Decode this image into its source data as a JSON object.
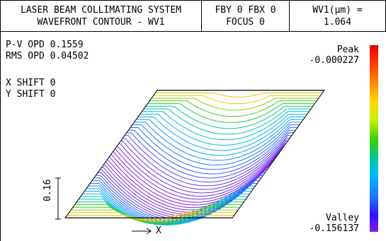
{
  "header": {
    "title_line1": "LASER BEAM COLLIMATING SYSTEM",
    "title_line2": "WAVEFRONT CONTOUR - WV1",
    "field_line1": "FBY 0  FBX 0",
    "field_line2": "FOCUS 0",
    "wave_line1": "WV1(μm) =",
    "wave_line2": "1.064"
  },
  "stats": {
    "pv": "P-V OPD 0.1559",
    "rms": "RMS OPD 0.04502",
    "xshift": "X SHIFT 0",
    "yshift": "Y SHIFT 0"
  },
  "legend": {
    "peak_label": "Peak",
    "peak_value": "-0.000227",
    "valley_label": "Valley",
    "valley_value": "-0.156137",
    "colors": [
      "#e80000",
      "#ff7a00",
      "#ffd400",
      "#40d000",
      "#00c890",
      "#00b8ff",
      "#2070ff",
      "#8020e0"
    ]
  },
  "axes": {
    "scale_value": "0.16",
    "x_label": "X"
  },
  "chart_data": {
    "type": "surface",
    "title": "WAVEFRONT CONTOUR - WV1",
    "zlim": [
      -0.156137,
      -0.000227
    ],
    "pv": 0.1559,
    "rms": 0.04502,
    "scale": 0.16
  }
}
